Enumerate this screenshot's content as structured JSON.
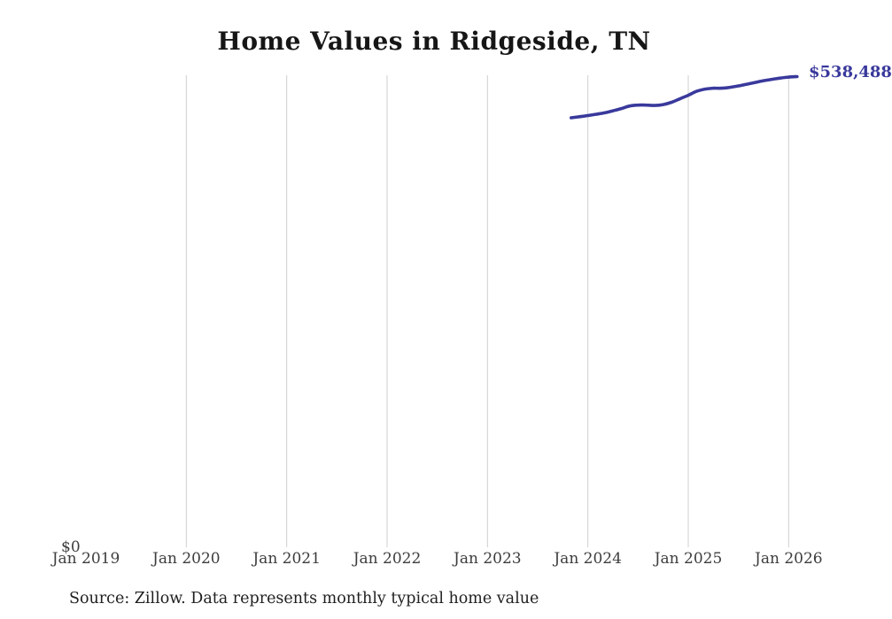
{
  "title": "Home Values in Ridgeside, TN",
  "y_zero_label": "$0",
  "source_note": "Source: Zillow. Data represents monthly typical home value",
  "colors": {
    "line": "#39399c",
    "grid": "#cfcfcf",
    "title_text": "#161616",
    "axis_text": "#3d3d3d",
    "source_text": "#1f1f1f",
    "background": "#ffffff"
  },
  "chart_data": {
    "type": "line",
    "title": "Home Values in Ridgeside, TN",
    "xlabel": "",
    "ylabel": "",
    "ylim": [
      0,
      540000
    ],
    "grid": "vertical-only",
    "legend": "none",
    "x_tick_labels": [
      "Jan 2019",
      "Jan 2020",
      "Jan 2021",
      "Jan 2022",
      "Jan 2023",
      "Jan 2024",
      "Jan 2025",
      "Jan 2026"
    ],
    "y_tick_labels": [
      "$0"
    ],
    "end_value_label": "$538,488",
    "series": [
      {
        "name": "Typical home value",
        "points": [
          {
            "date": "2023-11",
            "value": 491400
          },
          {
            "date": "2023-12",
            "value": 492600
          },
          {
            "date": "2024-01",
            "value": 493900
          },
          {
            "date": "2024-02",
            "value": 495400
          },
          {
            "date": "2024-03",
            "value": 497000
          },
          {
            "date": "2024-04",
            "value": 499400
          },
          {
            "date": "2024-05",
            "value": 501900
          },
          {
            "date": "2024-06",
            "value": 504900
          },
          {
            "date": "2024-07",
            "value": 505900
          },
          {
            "date": "2024-08",
            "value": 505900
          },
          {
            "date": "2024-09",
            "value": 505500
          },
          {
            "date": "2024-10",
            "value": 506500
          },
          {
            "date": "2024-11",
            "value": 509100
          },
          {
            "date": "2024-12",
            "value": 513100
          },
          {
            "date": "2025-01",
            "value": 517100
          },
          {
            "date": "2025-02",
            "value": 521700
          },
          {
            "date": "2025-03",
            "value": 524200
          },
          {
            "date": "2025-04",
            "value": 525200
          },
          {
            "date": "2025-05",
            "value": 525200
          },
          {
            "date": "2025-06",
            "value": 526200
          },
          {
            "date": "2025-07",
            "value": 527800
          },
          {
            "date": "2025-08",
            "value": 529800
          },
          {
            "date": "2025-09",
            "value": 531800
          },
          {
            "date": "2025-10",
            "value": 533800
          },
          {
            "date": "2025-11",
            "value": 535300
          },
          {
            "date": "2025-12",
            "value": 536800
          },
          {
            "date": "2026-01",
            "value": 537900
          },
          {
            "date": "2026-02",
            "value": 538488
          }
        ]
      }
    ]
  }
}
